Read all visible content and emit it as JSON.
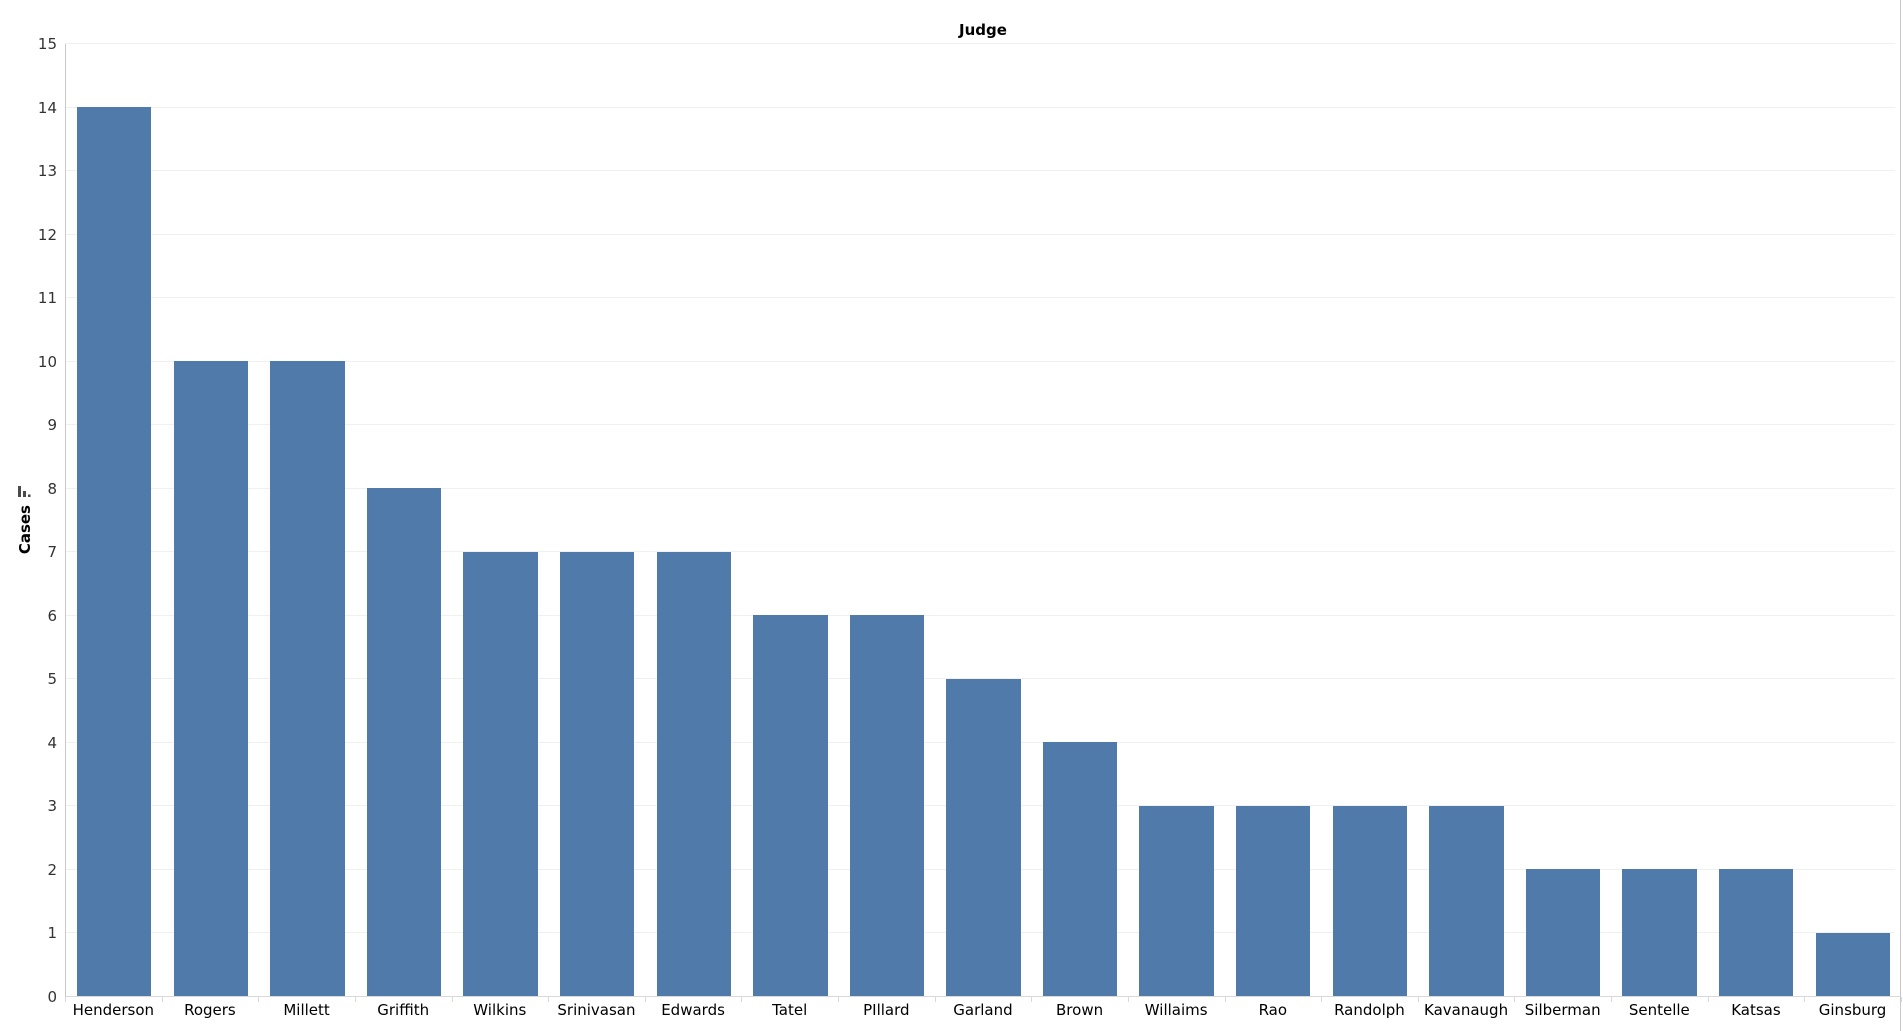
{
  "chart_data": {
    "type": "bar",
    "title": "Judge",
    "xlabel": "",
    "ylabel": "Cases",
    "categories": [
      "Henderson",
      "Rogers",
      "Millett",
      "Griffith",
      "Wilkins",
      "Srinivasan",
      "Edwards",
      "Tatel",
      "PIllard",
      "Garland",
      "Brown",
      "Willaims",
      "Rao",
      "Randolph",
      "Kavanaugh",
      "Silberman",
      "Sentelle",
      "Katsas",
      "Ginsburg"
    ],
    "values": [
      14,
      10,
      10,
      8,
      7,
      7,
      7,
      6,
      6,
      5,
      4,
      3,
      3,
      3,
      3,
      2,
      2,
      2,
      1
    ],
    "ylim": [
      0,
      15
    ],
    "yticks": [
      0,
      1,
      2,
      3,
      4,
      5,
      6,
      7,
      8,
      9,
      10,
      11,
      12,
      13,
      14,
      15
    ],
    "grid": "horizontal",
    "legend": "none",
    "colors": {
      "bar": "#4f7aa9",
      "gridline": "#f0f0f0",
      "axis_line": "#c9c9c9",
      "tick_label": "#333333",
      "title_text": "#000000",
      "sort_icon": "#4a4a4a"
    }
  }
}
